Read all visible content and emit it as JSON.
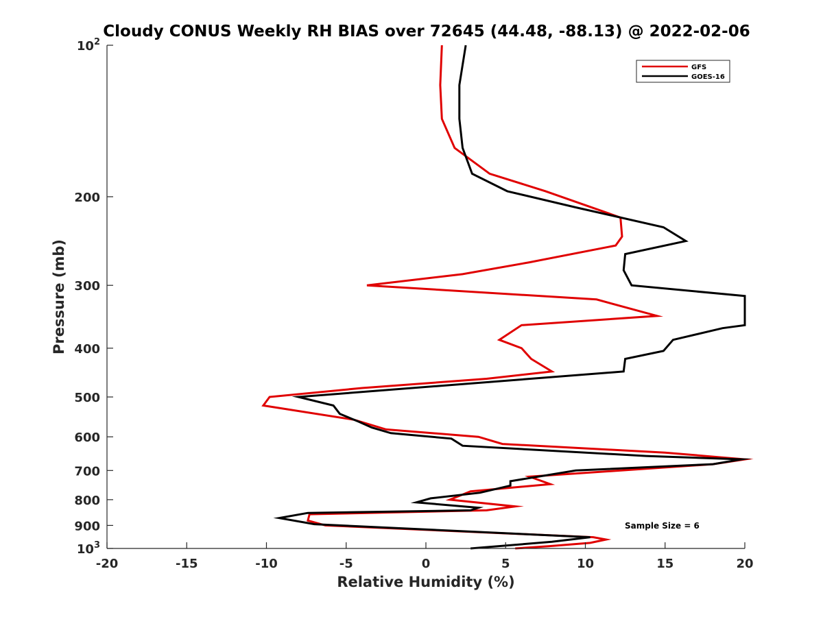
{
  "chart_data": {
    "type": "line",
    "title": "Cloudy CONUS Weekly RH BIAS over 72645 (44.48, -88.13) @ 2022-02-06",
    "xlabel": "Relative Humidity (%)",
    "ylabel": "Pressure (mb)",
    "xlim": [
      -20,
      20
    ],
    "ylim": [
      100,
      1000
    ],
    "y_scale": "log",
    "y_reversed": true,
    "grid": false,
    "legend_position": "top-right",
    "xticks": [
      "-20",
      "-15",
      "-10",
      "-5",
      "0",
      "5",
      "10",
      "15",
      "20"
    ],
    "yticks": [
      {
        "value": 100,
        "base": "10",
        "exp": "2"
      },
      {
        "value": 200,
        "label": "200"
      },
      {
        "value": 300,
        "label": "300"
      },
      {
        "value": 400,
        "label": "400"
      },
      {
        "value": 500,
        "label": "500"
      },
      {
        "value": 600,
        "label": "600"
      },
      {
        "value": 700,
        "label": "700"
      },
      {
        "value": 800,
        "label": "800"
      },
      {
        "value": 900,
        "label": "900"
      },
      {
        "value": 1000,
        "base": "10",
        "exp": "3"
      }
    ],
    "series": [
      {
        "name": "GFS",
        "color": "#e00000",
        "x": [
          1.0,
          0.9,
          1.0,
          1.8,
          4.0,
          7.5,
          12.2,
          12.3,
          11.9,
          6.5,
          2.3,
          -3.7,
          10.7,
          14.5,
          6.0,
          4.6,
          6.0,
          6.6,
          7.9,
          3.8,
          -4.0,
          -9.8,
          -10.2,
          -4.5,
          -2.5,
          3.3,
          4.8,
          15.0,
          20.0,
          18.0,
          6.5,
          7.8,
          2.8,
          1.5,
          5.6,
          3.8,
          -7.3,
          -7.4,
          -6.3,
          10.5,
          11.3,
          10.3,
          7.7,
          5.6
        ],
        "y": [
          100,
          120,
          140,
          160,
          180,
          195,
          220,
          240,
          250,
          270,
          285,
          300,
          320,
          345,
          360,
          385,
          400,
          420,
          445,
          460,
          480,
          500,
          520,
          555,
          580,
          600,
          620,
          645,
          665,
          680,
          720,
          745,
          770,
          800,
          825,
          840,
          855,
          880,
          900,
          950,
          960,
          975,
          990,
          1000
        ]
      },
      {
        "name": "GOES-16",
        "color": "#000000",
        "x": [
          2.5,
          2.1,
          2.1,
          2.3,
          2.9,
          5.1,
          9.4,
          14.9,
          16.3,
          12.5,
          12.4,
          12.9,
          20.0,
          20.0,
          18.6,
          15.5,
          14.9,
          12.5,
          12.4,
          -8.0,
          -5.8,
          -5.4,
          -4.2,
          -3.4,
          -2.2,
          1.6,
          2.3,
          13.8,
          19.8,
          18.0,
          9.4,
          5.3,
          5.3,
          3.4,
          0.3,
          -0.6,
          3.3,
          2.8,
          -7.4,
          -9.2,
          -7.0,
          10.3,
          7.9,
          2.8
        ],
        "y": [
          100,
          120,
          140,
          160,
          180,
          195,
          210,
          230,
          245,
          260,
          280,
          300,
          315,
          360,
          365,
          385,
          405,
          420,
          445,
          500,
          520,
          540,
          560,
          575,
          590,
          605,
          625,
          655,
          665,
          680,
          700,
          735,
          750,
          775,
          795,
          810,
          830,
          840,
          850,
          870,
          895,
          950,
          970,
          1000
        ]
      }
    ],
    "annotation": "Sample Size = 6"
  }
}
